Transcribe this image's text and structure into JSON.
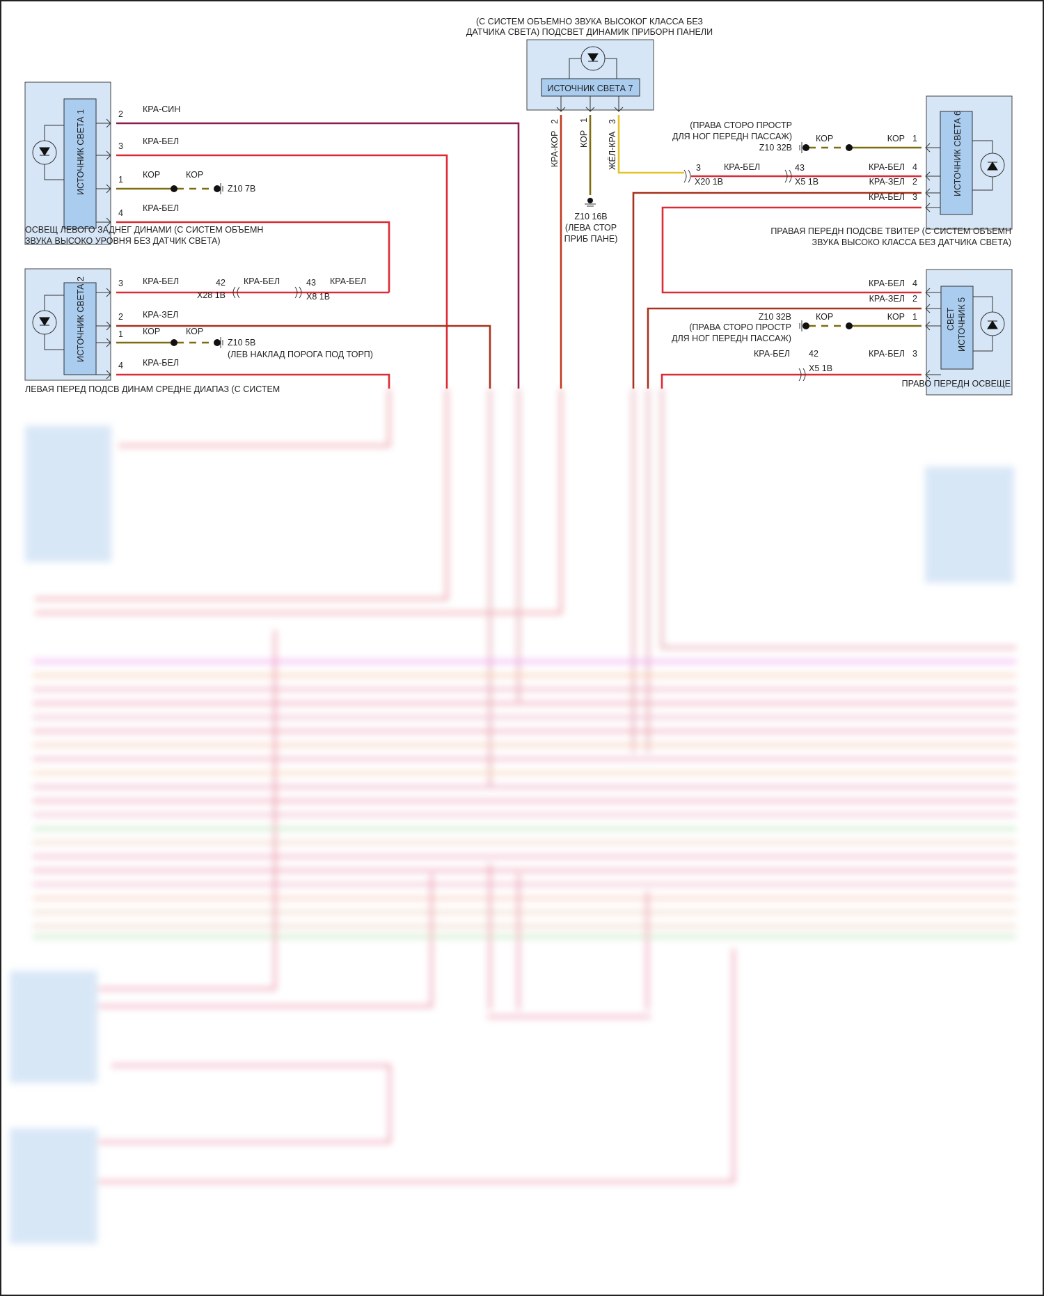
{
  "title": [
    "(С СИСТЕМ ОБЪЕМНО ЗВУКА ВЫСОКОГ КЛАССА БЕЗ",
    "ДАТЧИКА СВЕТА) ПОДСВЕТ ДИНАМИК ПРИБОРН ПАНЕЛИ"
  ],
  "source7": {
    "label": "ИСТОЧНИК СВЕТА 7",
    "pins": [
      "2",
      "1",
      "3"
    ],
    "wires": [
      "КРА-КОР",
      "КОР",
      "ЖЁЛ-КРА"
    ],
    "ground": [
      "Z10 16B",
      "(ЛЕВА СТОР",
      "ПРИБ ПАНЕ)"
    ]
  },
  "source1": {
    "label": "ИСТОЧНИК СВЕТА 1",
    "pins": [
      "2",
      "3",
      "1",
      "4"
    ],
    "wires": [
      "КРА-СИН",
      "КРА-БЕЛ",
      "КОР",
      "КРА-БЕЛ"
    ],
    "ground_wire": "КОР",
    "ground": "Z10 7B",
    "caption": [
      "ОСВЕЩ ЛЕВОГО ЗАДНЕГ ДИНАМИ (С СИСТЕМ ОБЪЕМН",
      "ЗВУКА ВЫСОКО УРОВНЯ БЕЗ ДАТЧИК СВЕТА)"
    ]
  },
  "source2": {
    "label": "ИСТОЧНИК СВЕТА 2",
    "pins": [
      "3",
      "2",
      "1",
      "4"
    ],
    "wires": [
      "КРА-БЕЛ",
      "КРА-ЗЕЛ",
      "КОР",
      "КРА-БЕЛ"
    ],
    "ground_wire": "КОР",
    "ground": "Z10 5B",
    "ground_note": "(ЛЕВ НАКЛАД ПОРОГА ПОД ТОРП)",
    "conn1": {
      "pin": "42",
      "name": "X28 1B",
      "wire": "КРА-БЕЛ"
    },
    "conn2": {
      "pin": "43",
      "name": "X8 1B",
      "wire": "КРА-БЕЛ"
    },
    "caption": "ЛЕВАЯ ПЕРЕД ПОДСВ ДИНАМ СРЕДНЕ ДИАПАЗ (С СИСТЕМ"
  },
  "source6": {
    "label": "ИСТОЧНИК СВЕТА 6",
    "pins": [
      "1",
      "4",
      "2",
      "3"
    ],
    "wires": [
      "КОР",
      "КРА-БЕЛ",
      "КРА-ЗЕЛ",
      "КРА-БЕЛ"
    ],
    "ground_wire": "КОР",
    "ground": "Z10 32B",
    "ground_note": [
      "(ПРАВА СТОРО ПРОСТР",
      "ДЛЯ НОГ ПЕРЕДН ПАССАЖ)"
    ],
    "conn1": {
      "pin": "3",
      "name": "X20 1B",
      "wire": "КРА-БЕЛ"
    },
    "conn2": {
      "pin": "43",
      "name": "X5 1B"
    },
    "caption": [
      "ПРАВАЯ ПЕРЕДН ПОДСВЕ ТВИТЕР (С СИСТЕМ ОБЪЕМН",
      "ЗВУКА ВЫСОКО КЛАССА БЕЗ ДАТЧИКА СВЕТА)"
    ]
  },
  "source5": {
    "label": [
      "СВЕТ",
      "ИСТОЧНИК 5"
    ],
    "pins": [
      "4",
      "2",
      "1",
      "3"
    ],
    "wires": [
      "КРА-БЕЛ",
      "КРА-ЗЕЛ",
      "КОР",
      "КРА-БЕЛ"
    ],
    "ground_wire": "КОР",
    "ground": "Z10 32B",
    "ground_note": [
      "(ПРАВА СТОРО ПРОСТР",
      "ДЛЯ НОГ ПЕРЕДН ПАССАЖ)"
    ],
    "conn": {
      "pin": "42",
      "name": "X5 1B",
      "wire": "КРА-БЕЛ"
    },
    "caption": "ПРАВО ПЕРЕДН ОСВЕЩЕ"
  },
  "colors": {
    "kra_sin": "#8e1d4e",
    "kra_bel": "#dc2a36",
    "kor": "#7d6d10",
    "zhel_kra": "#e6c22a",
    "kra_zel": "#a8321c",
    "box": "#d6e6f6",
    "box_inner": "#a9ccef"
  },
  "icons": [
    "led-icon",
    "ground-icon",
    "connector-icon"
  ]
}
